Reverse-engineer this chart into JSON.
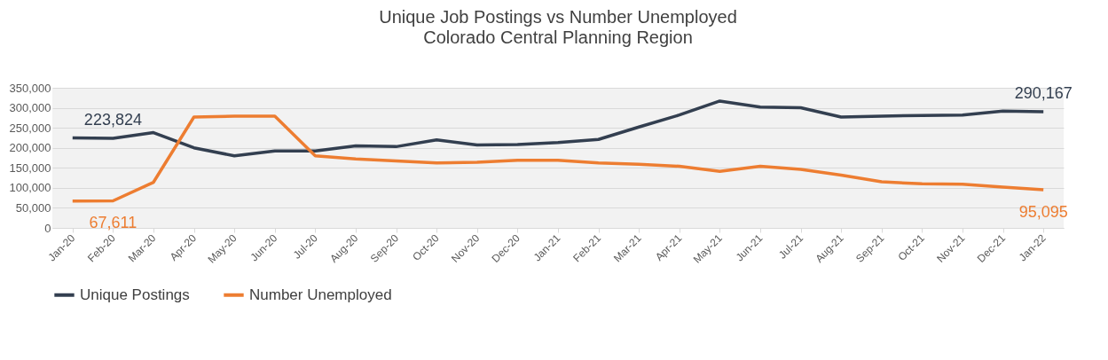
{
  "chart_data": {
    "type": "line",
    "title": "Unique Job Postings vs Number Unemployed",
    "subtitle": "Colorado Central Planning Region",
    "categories": [
      "Jan-20",
      "Feb-20",
      "Mar-20",
      "Apr-20",
      "May-20",
      "Jun-20",
      "Jul-20",
      "Aug-20",
      "Sep-20",
      "Oct-20",
      "Nov-20",
      "Dec-20",
      "Jan-21",
      "Feb-21",
      "Mar-21",
      "Apr-21",
      "May-21",
      "Jun-21",
      "Jul-21",
      "Aug-21",
      "Sep-21",
      "Oct-21",
      "Nov-21",
      "Dec-21",
      "Jan-22"
    ],
    "series": [
      {
        "name": "Unique Postings",
        "color": "#333f50",
        "values": [
          225000,
          223824,
          238000,
          200000,
          180000,
          192000,
          192000,
          205000,
          203000,
          220000,
          207000,
          208000,
          213000,
          221000,
          252000,
          282000,
          317000,
          302000,
          300000,
          277000,
          279000,
          281000,
          282000,
          292000,
          290167
        ],
        "value_labels": [
          null,
          "223,824",
          null,
          null,
          null,
          null,
          null,
          null,
          null,
          null,
          null,
          null,
          null,
          null,
          null,
          null,
          null,
          null,
          null,
          null,
          null,
          null,
          null,
          null,
          "290,167"
        ]
      },
      {
        "name": "Number Unemployed",
        "color": "#ed7d31",
        "values": [
          67000,
          67611,
          114000,
          277000,
          279000,
          279000,
          180000,
          172000,
          167000,
          162000,
          164000,
          169000,
          169000,
          162000,
          159000,
          154000,
          141000,
          154000,
          146000,
          132000,
          115000,
          110000,
          109000,
          102000,
          95095
        ],
        "value_labels": [
          null,
          "67,611",
          null,
          null,
          null,
          null,
          null,
          null,
          null,
          null,
          null,
          null,
          null,
          null,
          null,
          null,
          null,
          null,
          null,
          null,
          null,
          null,
          null,
          null,
          "95,095"
        ]
      }
    ],
    "ylim": [
      0,
      350000
    ],
    "yticks": [
      0,
      {
        "value": 50000,
        "label": "50,000"
      },
      {
        "value": 100000,
        "label": "100,000"
      },
      {
        "value": 150000,
        "label": "150,000"
      },
      {
        "value": 200000,
        "label": "200,000"
      },
      {
        "value": 250000,
        "label": "250,000"
      },
      {
        "value": 300000,
        "label": "300,000"
      },
      {
        "value": 350000,
        "label": "350,000"
      }
    ],
    "grid": "y",
    "legend": "bottom",
    "marker": "none",
    "line_style": "solid"
  }
}
